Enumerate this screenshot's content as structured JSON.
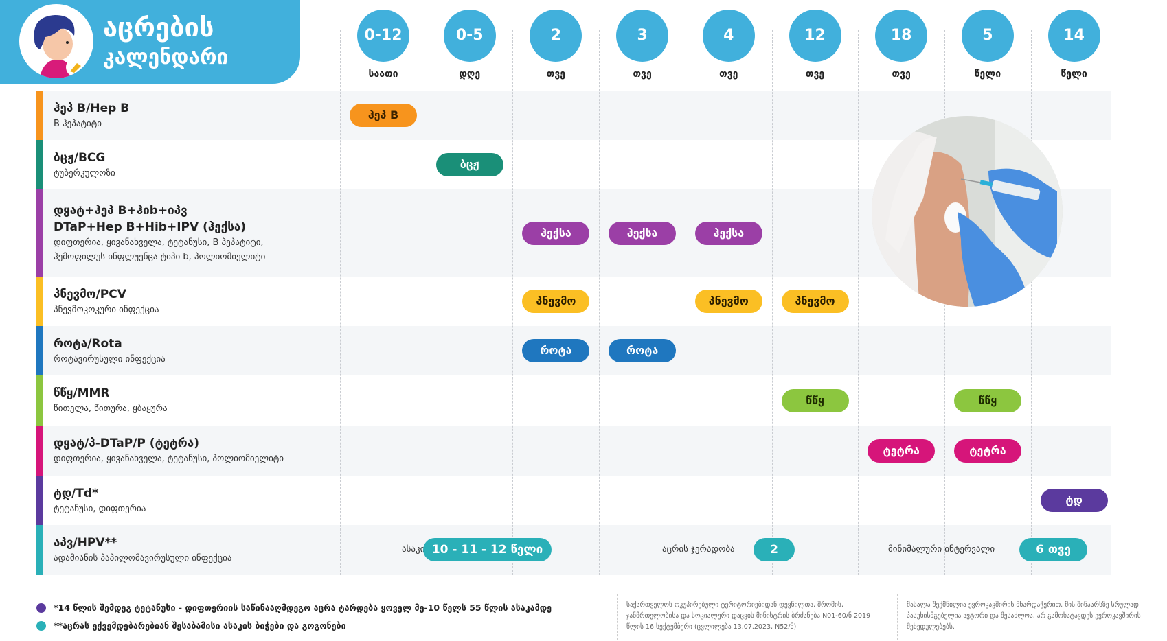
{
  "header": {
    "title_line1": "აცრების",
    "title_line2": "კალენდარი"
  },
  "ages": [
    {
      "value": "0-12",
      "unit": "საათი"
    },
    {
      "value": "0-5",
      "unit": "დღე"
    },
    {
      "value": "2",
      "unit": "თვე"
    },
    {
      "value": "3",
      "unit": "თვე"
    },
    {
      "value": "4",
      "unit": "თვე"
    },
    {
      "value": "12",
      "unit": "თვე"
    },
    {
      "value": "18",
      "unit": "თვე"
    },
    {
      "value": "5",
      "unit": "წელი"
    },
    {
      "value": "14",
      "unit": "წელი"
    }
  ],
  "colors": {
    "accent": "#41b0dc",
    "hpv": "#2ab0b8"
  },
  "vaccines": [
    {
      "name": "ჰეპ B/Hep B",
      "desc": [
        "B ჰეპატიტი"
      ],
      "pill": "ჰეპ B",
      "color": "#f7941d",
      "text_color": "#3a2200",
      "columns": [
        0
      ]
    },
    {
      "name": "ბცჟ/BCG",
      "desc": [
        "ტუბერკულოზი"
      ],
      "pill": "ბცჟ",
      "color": "#1a8f78",
      "text_color": "#ffffff",
      "columns": [
        1
      ]
    },
    {
      "name": "დყატ+ჰეპ B+ჰიb+იპვ\nDTaP+Hep B+Hib+IPV (ჰექსა)",
      "desc": [
        "დიფთერია, ყივანახველა, ტეტანუსი, B ჰეპატიტი,",
        "ჰემოფილუს ინფლუენცა ტიპი b, პოლიომიელიტი"
      ],
      "pill": "ჰექსა",
      "color": "#9b3fa6",
      "text_color": "#ffffff",
      "columns": [
        2,
        3,
        4
      ]
    },
    {
      "name": "პნევმო/PCV",
      "desc": [
        "პნევმოკოკური ინფექცია"
      ],
      "pill": "პნევმო",
      "color": "#fbbf24",
      "text_color": "#2a1e00",
      "columns": [
        2,
        4,
        5
      ]
    },
    {
      "name": "როტა/Rota",
      "desc": [
        "როტავირუსული ინფექცია"
      ],
      "pill": "როტა",
      "color": "#1f77bf",
      "text_color": "#ffffff",
      "columns": [
        2,
        3
      ]
    },
    {
      "name": "წწყ/MMR",
      "desc": [
        "წითელა, წითურა, ყბაყურა"
      ],
      "pill": "წწყ",
      "color": "#8cc63f",
      "text_color": "#1d2a00",
      "columns": [
        5,
        7
      ]
    },
    {
      "name": "დყატ/პ-DTaP/P (ტეტრა)",
      "desc": [
        "დიფთერია, ყივანახველა, ტეტანუსი, პოლიომიელიტი"
      ],
      "pill": "ტეტრა",
      "color": "#d6157a",
      "text_color": "#ffffff",
      "columns": [
        6,
        7
      ]
    },
    {
      "name": "ტდ/Td*",
      "desc": [
        "ტეტანუსი, დიფთერია"
      ],
      "pill": "ტდ",
      "color": "#5b3a9e",
      "text_color": "#ffffff",
      "columns": [
        8
      ]
    },
    {
      "name": "აპვ/HPV**",
      "desc": [
        "ადამიანის პაპილომავირუსული ინფექცია"
      ],
      "pill": "",
      "color": "#2ab0b8",
      "text_color": "#ffffff",
      "columns": []
    }
  ],
  "hpv": {
    "age_label": "ასაკი",
    "age_value": "10 - 11 - 12 წელი",
    "doses_label": "აცრის ჯერადობა",
    "doses_value": "2",
    "interval_label": "მინიმალური ინტერვალი",
    "interval_value": "6 თვე"
  },
  "footer": {
    "note1": "*14 წლის შემდეგ ტეტანუსი - დიფთერიის საწინააღმდეგო აცრა ტარდება ყოველ მე-10 წელს 55 წლის ასაკამდე",
    "note1_color": "#5b3a9e",
    "note2": "**აცრას ექვემდებარებიან  შესაბამისი ასაკის ბიჭები და გოგონები",
    "note2_color": "#2ab0b8",
    "legal": "საქართველოს ოკუპირებული ტერიტორიებიდან დევნილთა, შრომის, ჯანმრთელობისა და სოციალური დაცვის მინისტრის ბრძანება N01-60/ნ 2019 წლის 16 სექტემბერი (ცვლილება 13.07.2023, N52/ნ)",
    "disclaimer": "მასალა შექმნილია ევროკავშირის მხარდაჭერით. მის შინაარსზე სრულად პასუხისმგებელია ავტორი და შესაძლოა, არ გამოხატავდეს ევროკავშირის შეხედულებებს."
  }
}
